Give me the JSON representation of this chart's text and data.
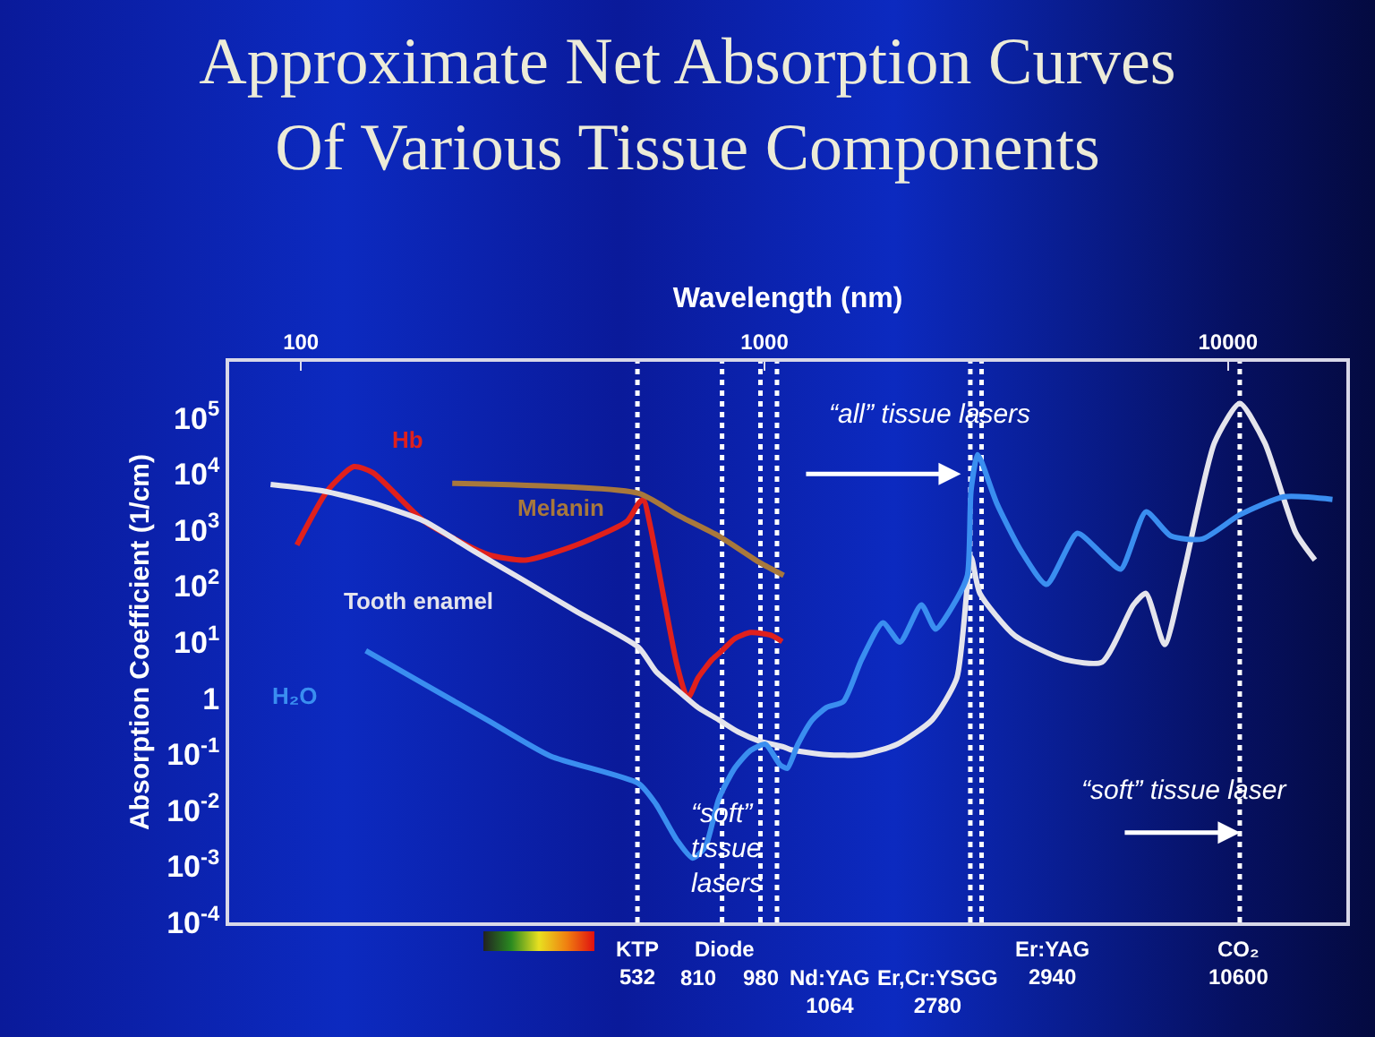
{
  "chart_data": {
    "type": "line",
    "title": "Approximate Net Absorption Curves\nOf Various Tissue Components",
    "xlabel": "Wavelength (nm)",
    "ylabel": "Absorption Coefficient (1/cm)",
    "log": "xy",
    "grid": false,
    "legend": false,
    "line_style": "solid",
    "marker": "none",
    "xlim": [
      70,
      18000
    ],
    "xticks": [
      100,
      1000,
      10000
    ],
    "ylim": [
      0.0001,
      1000000
    ],
    "yticks": [
      {
        "value": 0.0001,
        "label": "10$^{-4}$"
      },
      {
        "value": 0.001,
        "label": "10$^{-3}$"
      },
      {
        "value": 0.01,
        "label": "10$^{-2}$"
      },
      {
        "value": 0.1,
        "label": "10$^{-1}$"
      },
      1,
      {
        "value": 10,
        "label": "10$^{1}$"
      },
      {
        "value": 100,
        "label": "10$^{2}$"
      },
      {
        "value": 1000,
        "label": "10$^{3}$"
      },
      {
        "value": 10000,
        "label": "10$^{4}$"
      },
      {
        "value": 100000,
        "label": "10$^{5}$"
      }
    ],
    "series": [
      {
        "name": "Hb",
        "color": "#e0201c",
        "x": [
          98,
          114,
          130,
          143,
          184,
          252,
          305,
          393,
          506,
          535,
          548,
          568,
          604,
          648,
          683,
          719,
          771,
          811,
          862,
          933,
          1033,
          1092
        ],
        "values": [
          540,
          5000,
          13500,
          10500,
          1450,
          370,
          290,
          540,
          1450,
          3000,
          3500,
          1100,
          74,
          3.8,
          1.0,
          2.3,
          4.9,
          7.1,
          11.5,
          14.8,
          13.2,
          10.2
        ]
      },
      {
        "name": "Melanin",
        "color": "#a8783c",
        "x": [
          212,
          535,
          648,
          797,
          978,
          1100
        ],
        "values": [
          6800,
          4500,
          1860,
          780,
          260,
          155
        ]
      },
      {
        "name": "Tooth enamel",
        "color": "#e4e4ec",
        "x": [
          86,
          111,
          143,
          184,
          236,
          304,
          393,
          535,
          583,
          648,
          719,
          797,
          877,
          978,
          1100,
          1140,
          1360,
          1620,
          1930,
          2300,
          2600,
          2790,
          2915,
          3470,
          4440,
          5350,
          6250,
          6650,
          7300,
          8000,
          9350,
          10600,
          12000,
          14000,
          15400
        ],
        "values": [
          6500,
          5000,
          3000,
          1450,
          420,
          123,
          35,
          8,
          3,
          1.4,
          0.68,
          0.41,
          0.25,
          0.17,
          0.135,
          0.12,
          0.098,
          0.098,
          0.15,
          0.41,
          2.3,
          330,
          74,
          13,
          4.9,
          4.4,
          46,
          74,
          9,
          155,
          36000,
          180000,
          36000,
          890,
          290
        ]
      },
      {
        "name": "H₂O",
        "color": "#3a8ef0",
        "x": [
          138,
          184,
          252,
          345,
          535,
          583,
          648,
          700,
          745,
          797,
          862,
          933,
          1005,
          1080,
          1120,
          1180,
          1268,
          1360,
          1480,
          1620,
          1800,
          1960,
          2180,
          2340,
          2600,
          2740,
          2790,
          2880,
          2935,
          3170,
          3580,
          4060,
          4730,
          5350,
          5870,
          6650,
          7530,
          8800,
          10600,
          13200,
          16800
        ],
        "values": [
          7,
          1.8,
          0.41,
          0.093,
          0.03,
          0.013,
          0.0029,
          0.0014,
          0.0022,
          0.016,
          0.056,
          0.117,
          0.15,
          0.065,
          0.056,
          0.15,
          0.41,
          0.68,
          0.87,
          4.9,
          22,
          10,
          46,
          17,
          59,
          155,
          5000,
          22000,
          17000,
          3000,
          420,
          107,
          870,
          370,
          200,
          2100,
          780,
          690,
          1860,
          3900,
          3500
        ]
      }
    ],
    "ref_lines": [
      {
        "axis": "x",
        "value": 532,
        "label": "KTP\n532",
        "color": "#ffffff",
        "line_style": "dotted"
      },
      {
        "axis": "x",
        "value": 810,
        "label": "810",
        "color": "#ffffff",
        "line_style": "dotted"
      },
      {
        "axis": "x",
        "value": 980,
        "label": "980",
        "color": "#ffffff",
        "line_style": "dotted"
      },
      {
        "axis": "x",
        "value": 1064,
        "label": "Nd:YAG\n1064",
        "color": "#ffffff",
        "line_style": "dotted"
      },
      {
        "axis": "x",
        "value": 2780,
        "label": "Er,Cr:YSGG\n2780",
        "color": "#ffffff",
        "line_style": "dotted"
      },
      {
        "axis": "x",
        "value": 2940,
        "label": "Er:YAG\n2940",
        "color": "#ffffff",
        "line_style": "dotted"
      },
      {
        "axis": "x",
        "value": 10600,
        "label": "CO₂\n10600",
        "color": "#ffffff",
        "line_style": "dotted"
      }
    ],
    "annotations": [
      "Diode",
      "“all” tissue lasers",
      "“soft”\ntissue\nlasers",
      "“soft” tissue laser"
    ]
  }
}
